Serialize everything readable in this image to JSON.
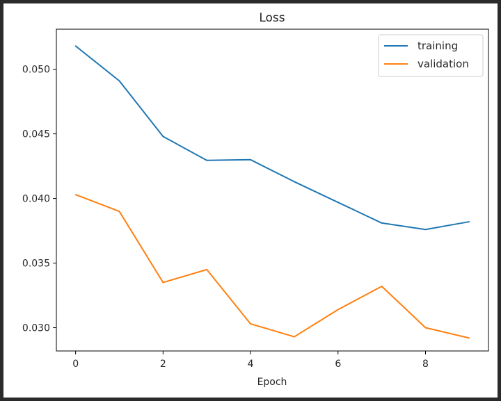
{
  "colors": {
    "frame": "#2b2b2b",
    "background": "#ffffff",
    "axis": "#000000",
    "text": "#262626"
  },
  "chart_data": {
    "type": "line",
    "title": "Loss",
    "xlabel": "Epoch",
    "ylabel": "",
    "x": [
      0,
      1,
      2,
      3,
      4,
      5,
      6,
      7,
      8,
      9
    ],
    "xlim": [
      -0.44,
      9.44
    ],
    "ylim": [
      0.0282,
      0.0531
    ],
    "xticks": [
      0,
      2,
      4,
      6,
      8
    ],
    "yticks": [
      0.03,
      0.035,
      0.04,
      0.045,
      0.05
    ],
    "ytick_labels": [
      "0.030",
      "0.035",
      "0.040",
      "0.045",
      "0.050"
    ],
    "grid": false,
    "legend_position": "top-right",
    "series": [
      {
        "name": "training",
        "color": "#1f77b4",
        "values": [
          0.0518,
          0.0491,
          0.0448,
          0.04295,
          0.043,
          0.0413,
          0.0397,
          0.0381,
          0.0376,
          0.0382
        ]
      },
      {
        "name": "validation",
        "color": "#ff7f0e",
        "values": [
          0.0403,
          0.039,
          0.0335,
          0.0345,
          0.0303,
          0.0293,
          0.0314,
          0.0332,
          0.03,
          0.0292
        ]
      }
    ]
  }
}
